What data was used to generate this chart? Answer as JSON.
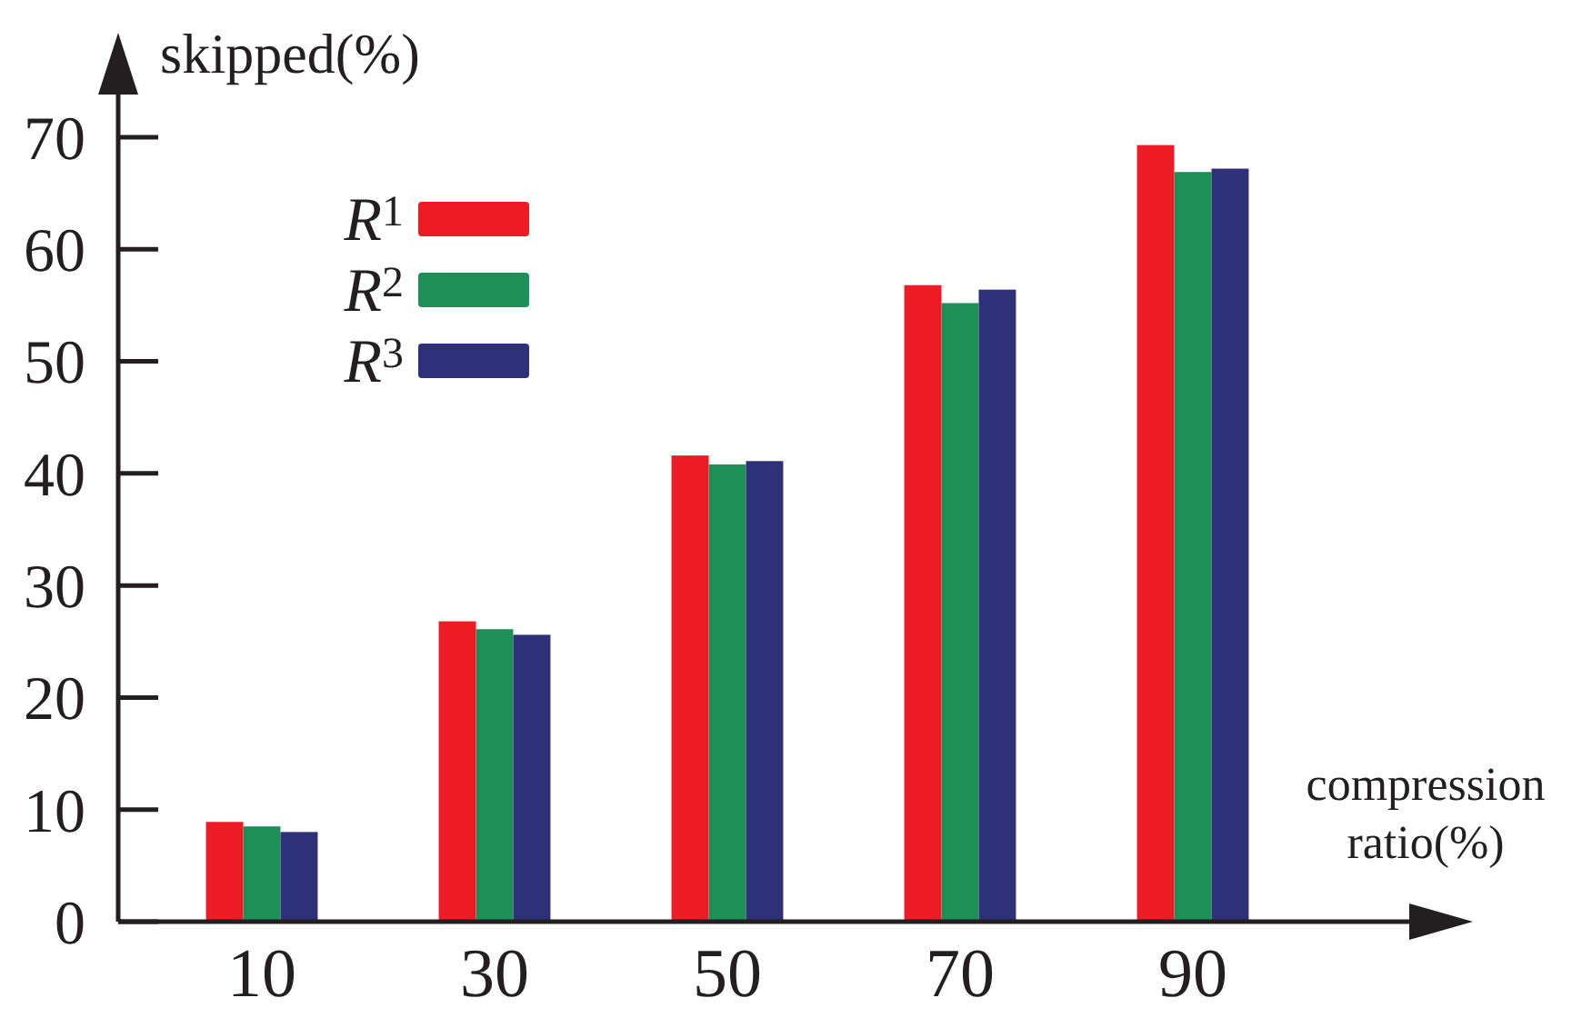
{
  "chart_data": {
    "type": "bar",
    "ylabel": "skipped(%)",
    "xlabel": "compression ratio(%)",
    "categories": [
      "10",
      "30",
      "50",
      "70",
      "90"
    ],
    "series": [
      {
        "name": "R$^{1}$",
        "color": "#ed1c24",
        "values": [
          8.9,
          26.8,
          41.6,
          56.8,
          69.3
        ]
      },
      {
        "name": "R$^{2}$",
        "color": "#1f8f5a",
        "values": [
          8.5,
          26.1,
          40.8,
          55.2,
          66.9
        ]
      },
      {
        "name": "R$^{3}$",
        "color": "#2e3079",
        "values": [
          8.0,
          25.6,
          41.1,
          56.4,
          67.2
        ]
      }
    ],
    "ylim": [
      0,
      70
    ],
    "yticks": [
      0,
      10,
      20,
      30,
      40,
      50,
      60,
      70
    ],
    "grid": false,
    "legend": "top left"
  }
}
